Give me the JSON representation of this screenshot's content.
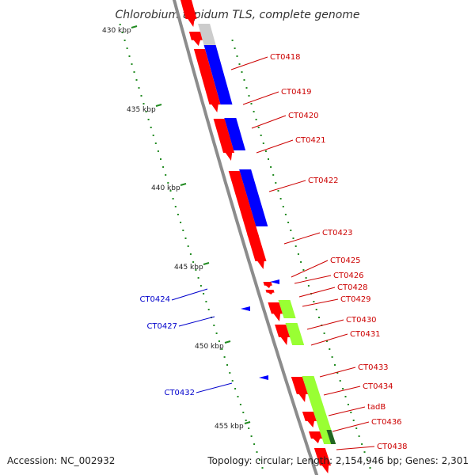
{
  "title": "Chlorobium tepidum TLS, complete genome",
  "accession": "Accession: NC_002932",
  "summary": "Topology: circular; Length: 2,154,946 bp; Genes: 2,301",
  "colors": {
    "backbone": "#8c8c8c",
    "forward_gene": "#ff0000",
    "reverse_gene": "#0000ff",
    "cds_blue": "#0000ff",
    "cds_green": "#99ff33",
    "cds_gray": "#cccccc",
    "forward_label": "#cc0000",
    "reverse_label": "#0000cc",
    "tick": "#228b22"
  },
  "ticks": [
    {
      "label": "430 kbp"
    },
    {
      "label": "435 kbp"
    },
    {
      "label": "440 kbp"
    },
    {
      "label": "445 kbp"
    },
    {
      "label": "450 kbp"
    },
    {
      "label": "455 kbp"
    }
  ],
  "forward_labels": [
    "CT0418",
    "CT0419",
    "CT0420",
    "CT0421",
    "CT0422",
    "CT0423",
    "CT0425",
    "CT0426",
    "CT0428",
    "CT0429",
    "CT0430",
    "CT0431",
    "CT0433",
    "CT0434",
    "tadB",
    "CT0436",
    "CT0438"
  ],
  "reverse_labels": [
    "CT0424",
    "CT0427",
    "CT0432"
  ]
}
